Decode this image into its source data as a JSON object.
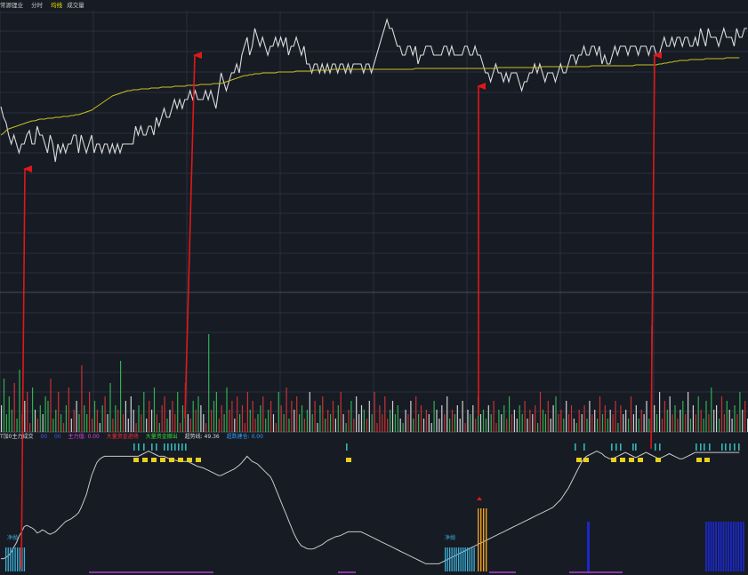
{
  "topbar": {
    "title": "常源锂业",
    "timeshare": "分时",
    "avg_line": "均线",
    "volume": "成交量"
  },
  "indicator": {
    "title": "T加0主力成交",
    "a": "00",
    "b": "00",
    "main_force": "主力值: 0.00",
    "capital_in": "大量资金进场",
    "capital_out": "大量资金撤出",
    "breakout": "超势线: 49.36",
    "warehouse": "超跌建仓: 0.00",
    "buy_label": "净抛",
    "buy_label_2": "净抛"
  },
  "colors": {
    "background": "#171b24",
    "grid": "#2a2f3c",
    "price": "#dcdcdc",
    "avg": "#c8c020",
    "up": "#c83232",
    "down": "#30b050",
    "flat": "#d0d0d0",
    "arrow": "#e01818",
    "cyan": "#3ab0d8",
    "orange": "#f0a020",
    "navy": "#1a28c8",
    "teal": "#30b8b8",
    "yellow": "#e8d020"
  },
  "chart_data": {
    "type": "line",
    "price": [
      108,
      120,
      126,
      140,
      150,
      140,
      150,
      160,
      150,
      150,
      140,
      135,
      150,
      150,
      130,
      140,
      140,
      150,
      160,
      140,
      150,
      170,
      150,
      160,
      150,
      160,
      150,
      150,
      140,
      140,
      160,
      140,
      150,
      160,
      150,
      140,
      160,
      150,
      150,
      160,
      150,
      150,
      160,
      150,
      160,
      150,
      160,
      150,
      150,
      150,
      150,
      150,
      130,
      140,
      130,
      140,
      140,
      130,
      130,
      140,
      120,
      130,
      120,
      110,
      120,
      120,
      110,
      100,
      110,
      100,
      110,
      100,
      100,
      90,
      100,
      90,
      100,
      100,
      100,
      90,
      100,
      90,
      100,
      110,
      90,
      70,
      80,
      90,
      80,
      70,
      70,
      60,
      70,
      50,
      40,
      30,
      50,
      40,
      20,
      30,
      40,
      30,
      40,
      50,
      40,
      40,
      30,
      40,
      30,
      40,
      30,
      50,
      40,
      40,
      30,
      40,
      50,
      40,
      60,
      60,
      70,
      60,
      60,
      70,
      60,
      70,
      60,
      70,
      60,
      60,
      70,
      60,
      60,
      70,
      60,
      70,
      60,
      60,
      60,
      60,
      70,
      60,
      60,
      70,
      60,
      50,
      40,
      30,
      20,
      10,
      20,
      20,
      30,
      40,
      40,
      50,
      50,
      40,
      40,
      50,
      40,
      60,
      50,
      50,
      40,
      40,
      40,
      50,
      50,
      50,
      50,
      40,
      40,
      50,
      40,
      50,
      50,
      50,
      50,
      40,
      40,
      50,
      50,
      40,
      50,
      50,
      60,
      70,
      70,
      80,
      70,
      60,
      70,
      70,
      80,
      70,
      80,
      70,
      70,
      70,
      80,
      90,
      80,
      80,
      70,
      70,
      60,
      70,
      60,
      70,
      80,
      70,
      70,
      70,
      80,
      70,
      60,
      70,
      70,
      60,
      50,
      50,
      60,
      50,
      50,
      40,
      50,
      50,
      40,
      40,
      50,
      40,
      60,
      50,
      60,
      60,
      50,
      40,
      50,
      40,
      40,
      40,
      50,
      40,
      40,
      40,
      50,
      40,
      40,
      40,
      50,
      40,
      40,
      50,
      50,
      40,
      30,
      40,
      40,
      30,
      40,
      30,
      30,
      40,
      30,
      30,
      40,
      40,
      30,
      40,
      20,
      30,
      40,
      20,
      30,
      30,
      30,
      40,
      30,
      20,
      30,
      30,
      30,
      40,
      20,
      30,
      30,
      20,
      20
    ],
    "avg": [
      140,
      138,
      135,
      133,
      132,
      131,
      130,
      129,
      128,
      127,
      126,
      125,
      124,
      124,
      123,
      122,
      122,
      122,
      121,
      121,
      121,
      120,
      120,
      120,
      119,
      119,
      119,
      118,
      118,
      117,
      117,
      116,
      115,
      114,
      113,
      112,
      110,
      108,
      106,
      104,
      102,
      100,
      98,
      96,
      95,
      94,
      93,
      92,
      91,
      90,
      90,
      89,
      89,
      89,
      88,
      88,
      88,
      88,
      87,
      87,
      87,
      87,
      86,
      86,
      86,
      86,
      86,
      85,
      85,
      85,
      85,
      85,
      84,
      84,
      84,
      84,
      84,
      83,
      83,
      83,
      83,
      83,
      82,
      82,
      82,
      82,
      81,
      80,
      79,
      78,
      77,
      76,
      75,
      74,
      73,
      73,
      72,
      72,
      71,
      71,
      71,
      70,
      70,
      70,
      70,
      70,
      70,
      69,
      69,
      69,
      69,
      69,
      69,
      69,
      68,
      68,
      68,
      68,
      68,
      68,
      68,
      67,
      67,
      67,
      67,
      67,
      67,
      67,
      66,
      66,
      66,
      66,
      66,
      66,
      66,
      66,
      66,
      66,
      66,
      66,
      66,
      66,
      66,
      66,
      66,
      66,
      66,
      66,
      66,
      66,
      66,
      66,
      66,
      66,
      66,
      66,
      66,
      66,
      66,
      66,
      65,
      65,
      65,
      65,
      65,
      65,
      65,
      65,
      65,
      65,
      65,
      65,
      65,
      65,
      65,
      65,
      65,
      65,
      65,
      65,
      65,
      65,
      65,
      65,
      65,
      65,
      65,
      65,
      65,
      65,
      65,
      65,
      64,
      64,
      64,
      64,
      64,
      64,
      64,
      64,
      64,
      64,
      64,
      64,
      64,
      64,
      64,
      64,
      64,
      63,
      63,
      63,
      63,
      63,
      63,
      63,
      63,
      63,
      63,
      63,
      63,
      63,
      63,
      63,
      63,
      63,
      63,
      63,
      62,
      62,
      62,
      62,
      62,
      62,
      62,
      62,
      62,
      62,
      62,
      62,
      62,
      62,
      62,
      62,
      62,
      61,
      61,
      61,
      61,
      61,
      61,
      61,
      61,
      61,
      60,
      60,
      59,
      59,
      58,
      58,
      57,
      57,
      56,
      56,
      56,
      56,
      55,
      55,
      55,
      55,
      55,
      55,
      54,
      54,
      54,
      54,
      54,
      54,
      54,
      54,
      53,
      53,
      53,
      53,
      53,
      53
    ],
    "volume": [
      30,
      60,
      20,
      40,
      25,
      55,
      15,
      70,
      20,
      35,
      45,
      10,
      50,
      25,
      15,
      30,
      20,
      40,
      35,
      60,
      15,
      25,
      45,
      20,
      10,
      30,
      50,
      15,
      25,
      35,
      20,
      75,
      30,
      20,
      45,
      15,
      35,
      25,
      10,
      30,
      40,
      20,
      55,
      15,
      30,
      25,
      80,
      20,
      35,
      15,
      40,
      25,
      10,
      30,
      20,
      45,
      15,
      35,
      25,
      50,
      20,
      10,
      30,
      40,
      15,
      25,
      35,
      20,
      45,
      10,
      30,
      55,
      20,
      15,
      35,
      25,
      40,
      30,
      20,
      10,
      110,
      25,
      35,
      45,
      15,
      30,
      20,
      50,
      25,
      35,
      15,
      40,
      20,
      30,
      10,
      45,
      25,
      35,
      15,
      20,
      30,
      40,
      15,
      25,
      35,
      20,
      10,
      45,
      30,
      20,
      50,
      15,
      35,
      25,
      40,
      20,
      30,
      15,
      25,
      45,
      20,
      35,
      10,
      30,
      40,
      15,
      25,
      20,
      35,
      15,
      30,
      45,
      20,
      10,
      25,
      35,
      15,
      40,
      20,
      30,
      25,
      15,
      35,
      20,
      45,
      10,
      30,
      20,
      40,
      15,
      25,
      35,
      20,
      30,
      15,
      10,
      25,
      20,
      35,
      15,
      40,
      20,
      30,
      15,
      25,
      20,
      10,
      35,
      25,
      15,
      30,
      20,
      40,
      15,
      25,
      20,
      30,
      15,
      35,
      10,
      25,
      20,
      30,
      15,
      40,
      20,
      25,
      15,
      30,
      20,
      35,
      10,
      25,
      20,
      30,
      15,
      40,
      20,
      25,
      15,
      30,
      20,
      35,
      15,
      25,
      20,
      30,
      10,
      45,
      25,
      20,
      35,
      15,
      30,
      40,
      20,
      25,
      15,
      35,
      20,
      30,
      15,
      10,
      25,
      20,
      30,
      15,
      35,
      20,
      25,
      15,
      40,
      20,
      30,
      15,
      25,
      20,
      35,
      10,
      30,
      20,
      25,
      15,
      40,
      20,
      30,
      15,
      25,
      20,
      35,
      15,
      120,
      30,
      20,
      45,
      15,
      35,
      25,
      40,
      20,
      30,
      15,
      25,
      35,
      20,
      45,
      15,
      30,
      20,
      40,
      25,
      15,
      35,
      20,
      50,
      25,
      30,
      15,
      40,
      20,
      35,
      25,
      15,
      30,
      20,
      45,
      25,
      35,
      15,
      30,
      20
    ],
    "indicator_line": [
      20,
      20,
      22,
      25,
      30,
      38,
      45,
      55,
      62,
      70,
      72,
      70,
      68,
      65,
      60,
      62,
      65,
      63,
      60,
      58,
      60,
      62,
      66,
      70,
      74,
      78,
      80,
      82,
      85,
      88,
      92,
      100,
      110,
      120,
      135,
      150,
      160,
      170,
      175,
      178,
      180,
      180,
      180,
      180,
      180,
      180,
      180,
      180,
      180,
      180,
      180,
      180,
      180,
      180,
      182,
      184,
      186,
      188,
      186,
      184,
      182,
      180,
      180,
      180,
      178,
      176,
      175,
      174,
      173,
      172,
      172,
      172,
      172,
      170,
      168,
      166,
      164,
      163,
      162,
      160,
      158,
      156,
      154,
      152,
      150,
      150,
      152,
      154,
      156,
      158,
      160,
      163,
      166,
      170,
      175,
      180,
      176,
      172,
      170,
      168,
      164,
      160,
      156,
      152,
      148,
      140,
      130,
      120,
      110,
      100,
      90,
      80,
      70,
      60,
      52,
      45,
      40,
      38,
      36,
      35,
      35,
      36,
      38,
      40,
      42,
      45,
      48,
      50,
      52,
      54,
      55,
      56,
      58,
      60,
      62,
      62,
      62,
      62,
      62,
      62,
      60,
      58,
      56,
      54,
      52,
      50,
      48,
      46,
      44,
      42,
      40,
      38,
      36,
      34,
      32,
      30,
      28,
      26,
      24,
      22,
      20,
      18,
      16,
      14,
      12,
      12,
      12,
      12,
      12,
      12,
      14,
      16,
      18,
      20,
      22,
      24,
      26,
      28,
      30,
      32,
      34,
      36,
      38,
      40,
      42,
      44,
      46,
      48,
      50,
      52,
      54,
      56,
      58,
      60,
      62,
      64,
      66,
      68,
      70,
      72,
      74,
      76,
      78,
      80,
      82,
      84,
      86,
      88,
      90,
      92,
      94,
      96,
      98,
      100,
      104,
      108,
      112,
      118,
      124,
      130,
      138,
      146,
      154,
      162,
      170,
      176,
      180,
      182,
      184,
      186,
      188,
      186,
      184,
      180,
      178,
      176,
      176,
      178,
      180,
      182,
      184,
      186,
      184,
      182,
      180,
      178,
      180,
      182,
      184,
      186,
      184,
      182,
      180,
      178,
      176,
      178,
      180,
      182,
      184,
      182,
      180,
      178,
      176,
      176,
      178,
      180,
      182,
      184,
      186,
      186,
      186,
      186,
      186,
      186,
      186,
      186,
      186,
      186,
      186,
      186,
      186,
      186,
      186,
      186,
      186,
      186
    ]
  }
}
